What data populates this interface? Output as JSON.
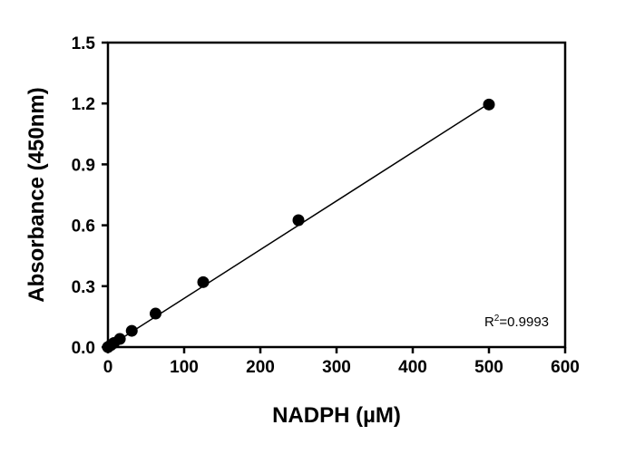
{
  "chart_data": {
    "type": "scatter",
    "title": "",
    "xlabel": "NADPH (µM)",
    "ylabel": "Absorbance (450nm)",
    "xlim": [
      0,
      600
    ],
    "ylim": [
      0,
      1.5
    ],
    "xticks": [
      0,
      100,
      200,
      300,
      400,
      500,
      600
    ],
    "yticks": [
      0.0,
      0.3,
      0.6,
      0.9,
      1.2,
      1.5
    ],
    "xtick_labels": [
      "0",
      "100",
      "200",
      "300",
      "400",
      "500",
      "600"
    ],
    "ytick_labels": [
      "0.0",
      "0.3",
      "0.6",
      "0.9",
      "1.2",
      "1.5"
    ],
    "grid": false,
    "legend": "none",
    "series": [
      {
        "x": [
          0,
          3.9,
          7.8,
          15.6,
          31.25,
          62.5,
          125,
          250,
          500
        ],
        "y": [
          0.0,
          0.01,
          0.02,
          0.04,
          0.08,
          0.165,
          0.32,
          0.625,
          1.195
        ]
      }
    ],
    "fit_line": {
      "x": [
        0,
        500
      ],
      "y": [
        0.0,
        1.2
      ]
    },
    "annotation": {
      "base": "R",
      "sup": "2",
      "value": "=0.9993"
    },
    "colors": {
      "marker": "#000000",
      "line": "#000000",
      "axis": "#000000"
    }
  }
}
